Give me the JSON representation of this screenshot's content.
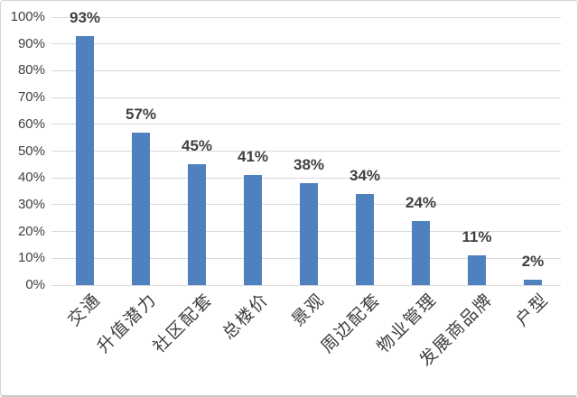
{
  "chart_data": {
    "type": "bar",
    "title": "",
    "xlabel": "",
    "ylabel": "",
    "categories": [
      "交通",
      "升值潜力",
      "社区配套",
      "总楼价",
      "景观",
      "周边配套",
      "物业管理",
      "发展商品牌",
      "户型"
    ],
    "values": [
      93,
      57,
      45,
      41,
      38,
      34,
      24,
      11,
      2
    ],
    "value_labels": [
      "93%",
      "57%",
      "45%",
      "41%",
      "38%",
      "34%",
      "24%",
      "11%",
      "2%"
    ],
    "yticks": [
      "0%",
      "10%",
      "20%",
      "30%",
      "40%",
      "50%",
      "60%",
      "70%",
      "80%",
      "90%",
      "100%"
    ],
    "ylim": [
      0,
      100
    ],
    "grid": true,
    "legend": "none",
    "colors": {
      "bar": "#4e81bd",
      "gridline": "#d9d9d9",
      "axis_tick_label": "#404040",
      "value_label": "#404040",
      "category_label": "#3d3d3d",
      "background": "#ffffff"
    }
  }
}
